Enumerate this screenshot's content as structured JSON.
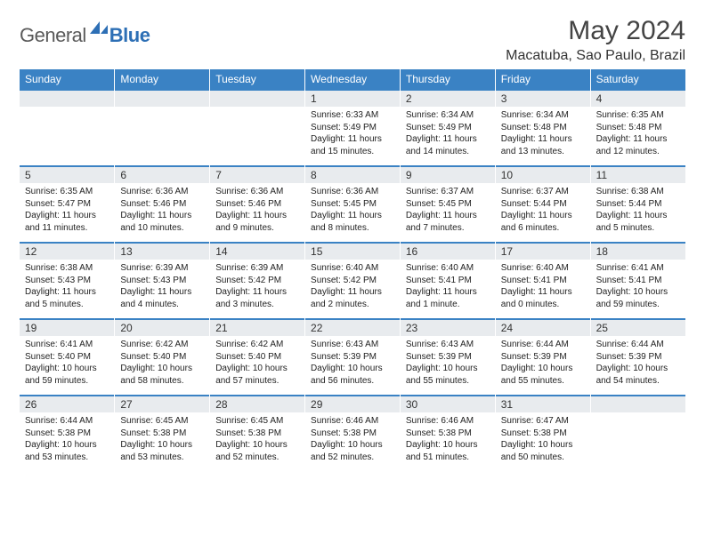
{
  "logo": {
    "general": "General",
    "blue": "Blue"
  },
  "title": "May 2024",
  "location": "Macatuba, Sao Paulo, Brazil",
  "day_headers": [
    "Sunday",
    "Monday",
    "Tuesday",
    "Wednesday",
    "Thursday",
    "Friday",
    "Saturday"
  ],
  "colors": {
    "header_bg": "#3a82c4",
    "header_text": "#ffffff",
    "daynum_bg": "#e8ebee",
    "border_accent": "#3a82c4",
    "logo_gray": "#5a5a5a",
    "logo_blue": "#2d6fb5"
  },
  "weeks": [
    [
      {
        "n": "",
        "sr": "",
        "ss": "",
        "dl": ""
      },
      {
        "n": "",
        "sr": "",
        "ss": "",
        "dl": ""
      },
      {
        "n": "",
        "sr": "",
        "ss": "",
        "dl": ""
      },
      {
        "n": "1",
        "sr": "Sunrise: 6:33 AM",
        "ss": "Sunset: 5:49 PM",
        "dl": "Daylight: 11 hours and 15 minutes."
      },
      {
        "n": "2",
        "sr": "Sunrise: 6:34 AM",
        "ss": "Sunset: 5:49 PM",
        "dl": "Daylight: 11 hours and 14 minutes."
      },
      {
        "n": "3",
        "sr": "Sunrise: 6:34 AM",
        "ss": "Sunset: 5:48 PM",
        "dl": "Daylight: 11 hours and 13 minutes."
      },
      {
        "n": "4",
        "sr": "Sunrise: 6:35 AM",
        "ss": "Sunset: 5:48 PM",
        "dl": "Daylight: 11 hours and 12 minutes."
      }
    ],
    [
      {
        "n": "5",
        "sr": "Sunrise: 6:35 AM",
        "ss": "Sunset: 5:47 PM",
        "dl": "Daylight: 11 hours and 11 minutes."
      },
      {
        "n": "6",
        "sr": "Sunrise: 6:36 AM",
        "ss": "Sunset: 5:46 PM",
        "dl": "Daylight: 11 hours and 10 minutes."
      },
      {
        "n": "7",
        "sr": "Sunrise: 6:36 AM",
        "ss": "Sunset: 5:46 PM",
        "dl": "Daylight: 11 hours and 9 minutes."
      },
      {
        "n": "8",
        "sr": "Sunrise: 6:36 AM",
        "ss": "Sunset: 5:45 PM",
        "dl": "Daylight: 11 hours and 8 minutes."
      },
      {
        "n": "9",
        "sr": "Sunrise: 6:37 AM",
        "ss": "Sunset: 5:45 PM",
        "dl": "Daylight: 11 hours and 7 minutes."
      },
      {
        "n": "10",
        "sr": "Sunrise: 6:37 AM",
        "ss": "Sunset: 5:44 PM",
        "dl": "Daylight: 11 hours and 6 minutes."
      },
      {
        "n": "11",
        "sr": "Sunrise: 6:38 AM",
        "ss": "Sunset: 5:44 PM",
        "dl": "Daylight: 11 hours and 5 minutes."
      }
    ],
    [
      {
        "n": "12",
        "sr": "Sunrise: 6:38 AM",
        "ss": "Sunset: 5:43 PM",
        "dl": "Daylight: 11 hours and 5 minutes."
      },
      {
        "n": "13",
        "sr": "Sunrise: 6:39 AM",
        "ss": "Sunset: 5:43 PM",
        "dl": "Daylight: 11 hours and 4 minutes."
      },
      {
        "n": "14",
        "sr": "Sunrise: 6:39 AM",
        "ss": "Sunset: 5:42 PM",
        "dl": "Daylight: 11 hours and 3 minutes."
      },
      {
        "n": "15",
        "sr": "Sunrise: 6:40 AM",
        "ss": "Sunset: 5:42 PM",
        "dl": "Daylight: 11 hours and 2 minutes."
      },
      {
        "n": "16",
        "sr": "Sunrise: 6:40 AM",
        "ss": "Sunset: 5:41 PM",
        "dl": "Daylight: 11 hours and 1 minute."
      },
      {
        "n": "17",
        "sr": "Sunrise: 6:40 AM",
        "ss": "Sunset: 5:41 PM",
        "dl": "Daylight: 11 hours and 0 minutes."
      },
      {
        "n": "18",
        "sr": "Sunrise: 6:41 AM",
        "ss": "Sunset: 5:41 PM",
        "dl": "Daylight: 10 hours and 59 minutes."
      }
    ],
    [
      {
        "n": "19",
        "sr": "Sunrise: 6:41 AM",
        "ss": "Sunset: 5:40 PM",
        "dl": "Daylight: 10 hours and 59 minutes."
      },
      {
        "n": "20",
        "sr": "Sunrise: 6:42 AM",
        "ss": "Sunset: 5:40 PM",
        "dl": "Daylight: 10 hours and 58 minutes."
      },
      {
        "n": "21",
        "sr": "Sunrise: 6:42 AM",
        "ss": "Sunset: 5:40 PM",
        "dl": "Daylight: 10 hours and 57 minutes."
      },
      {
        "n": "22",
        "sr": "Sunrise: 6:43 AM",
        "ss": "Sunset: 5:39 PM",
        "dl": "Daylight: 10 hours and 56 minutes."
      },
      {
        "n": "23",
        "sr": "Sunrise: 6:43 AM",
        "ss": "Sunset: 5:39 PM",
        "dl": "Daylight: 10 hours and 55 minutes."
      },
      {
        "n": "24",
        "sr": "Sunrise: 6:44 AM",
        "ss": "Sunset: 5:39 PM",
        "dl": "Daylight: 10 hours and 55 minutes."
      },
      {
        "n": "25",
        "sr": "Sunrise: 6:44 AM",
        "ss": "Sunset: 5:39 PM",
        "dl": "Daylight: 10 hours and 54 minutes."
      }
    ],
    [
      {
        "n": "26",
        "sr": "Sunrise: 6:44 AM",
        "ss": "Sunset: 5:38 PM",
        "dl": "Daylight: 10 hours and 53 minutes."
      },
      {
        "n": "27",
        "sr": "Sunrise: 6:45 AM",
        "ss": "Sunset: 5:38 PM",
        "dl": "Daylight: 10 hours and 53 minutes."
      },
      {
        "n": "28",
        "sr": "Sunrise: 6:45 AM",
        "ss": "Sunset: 5:38 PM",
        "dl": "Daylight: 10 hours and 52 minutes."
      },
      {
        "n": "29",
        "sr": "Sunrise: 6:46 AM",
        "ss": "Sunset: 5:38 PM",
        "dl": "Daylight: 10 hours and 52 minutes."
      },
      {
        "n": "30",
        "sr": "Sunrise: 6:46 AM",
        "ss": "Sunset: 5:38 PM",
        "dl": "Daylight: 10 hours and 51 minutes."
      },
      {
        "n": "31",
        "sr": "Sunrise: 6:47 AM",
        "ss": "Sunset: 5:38 PM",
        "dl": "Daylight: 10 hours and 50 minutes."
      },
      {
        "n": "",
        "sr": "",
        "ss": "",
        "dl": ""
      }
    ]
  ]
}
